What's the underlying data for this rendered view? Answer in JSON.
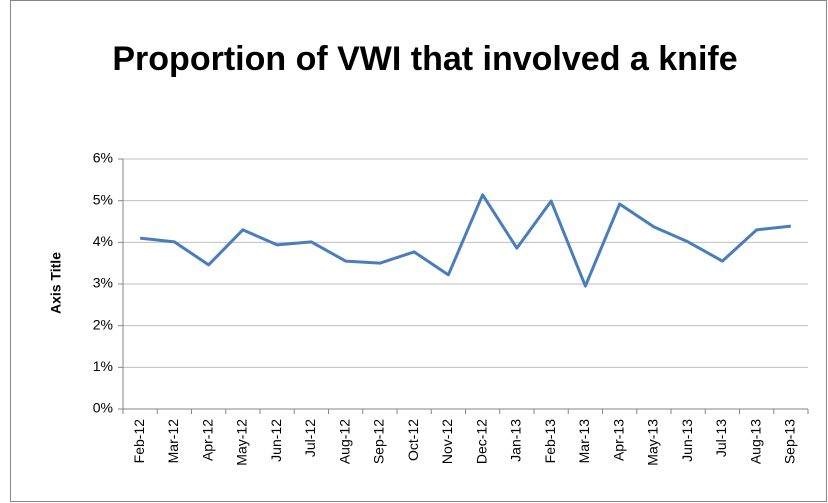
{
  "chart_data": {
    "type": "line",
    "title": "Proportion of VWI that involved a knife",
    "y_label": "Axis Title",
    "categories": [
      "Feb-12",
      "Mar-12",
      "Apr-12",
      "May-12",
      "Jun-12",
      "Jul-12",
      "Aug-12",
      "Sep-12",
      "Oct-12",
      "Nov-12",
      "Dec-12",
      "Jan-13",
      "Feb-13",
      "Mar-13",
      "Apr-13",
      "May-13",
      "Jun-13",
      "Jul-13",
      "Aug-13",
      "Sep-13"
    ],
    "values": [
      4.1,
      4.01,
      3.46,
      4.3,
      3.94,
      4.01,
      3.55,
      3.5,
      3.77,
      3.22,
      5.14,
      3.86,
      4.99,
      2.95,
      4.92,
      4.37,
      4.01,
      3.55,
      4.3,
      4.39
    ],
    "color": "#4a7ebb",
    "ylim": [
      0,
      6
    ],
    "yticks": [
      {
        "value": 0,
        "label": "0%"
      },
      {
        "value": 1,
        "label": "1%"
      },
      {
        "value": 2,
        "label": "2%"
      },
      {
        "value": 3,
        "label": "3%"
      },
      {
        "value": 4,
        "label": "4%"
      },
      {
        "value": 5,
        "label": "5%"
      },
      {
        "value": 6,
        "label": "6%"
      }
    ],
    "grid": true
  }
}
